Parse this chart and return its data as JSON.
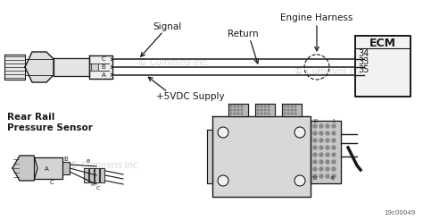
{
  "bg_color": "#ffffff",
  "lc": "#1a1a1a",
  "wc_top1": "#c8c8c8",
  "wc_top2": "#c8c8c8",
  "wc_bot1": "#c8c8c8",
  "wc_bot2": "#c8c8c8",
  "label_signal": "Signal",
  "label_return": "Return",
  "label_engine_harness": "Engine Harness",
  "label_5vdc": "+5VDC Supply",
  "label_ecm": "ECM",
  "ecm_pins": [
    "34",
    "33",
    "35"
  ],
  "label_rear_rail_1": "Rear Rail",
  "label_rear_rail_2": "Pressure Sensor",
  "label_cummins": "© Cummins Inc.",
  "part_no": "19c00049",
  "fig_width": 4.74,
  "fig_height": 2.46,
  "dpi": 100
}
